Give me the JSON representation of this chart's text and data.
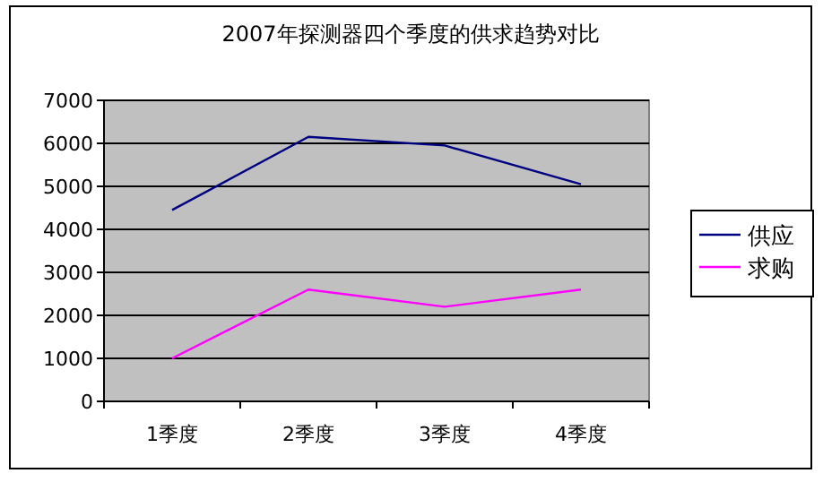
{
  "chart_data": {
    "type": "line",
    "title": "2007年探测器四个季度的供求趋势对比",
    "categories": [
      "1季度",
      "2季度",
      "3季度",
      "4季度"
    ],
    "series": [
      {
        "name": "供应",
        "color": "#000080",
        "values": [
          4450,
          6150,
          5950,
          5050
        ]
      },
      {
        "name": "求购",
        "color": "#ff00ff",
        "values": [
          1000,
          2600,
          2200,
          2600
        ]
      }
    ],
    "ylim": [
      0,
      7000
    ],
    "yticks": [
      0,
      1000,
      2000,
      3000,
      4000,
      5000,
      6000,
      7000
    ],
    "grid": "y",
    "legend": "right"
  }
}
